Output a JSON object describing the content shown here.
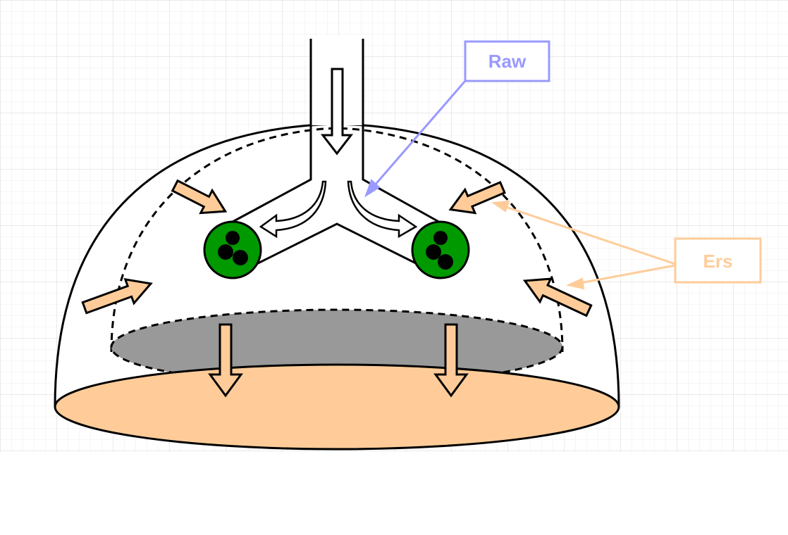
{
  "labels": {
    "raw": "Raw",
    "ers": "Ers"
  },
  "colors": {
    "raw": "#9999ff",
    "ers": "#ffcc99",
    "base": "#ffcc99",
    "inner_base": "#999999",
    "cell": "#009900",
    "grid": "#dcdcdc",
    "stroke": "#000000"
  }
}
